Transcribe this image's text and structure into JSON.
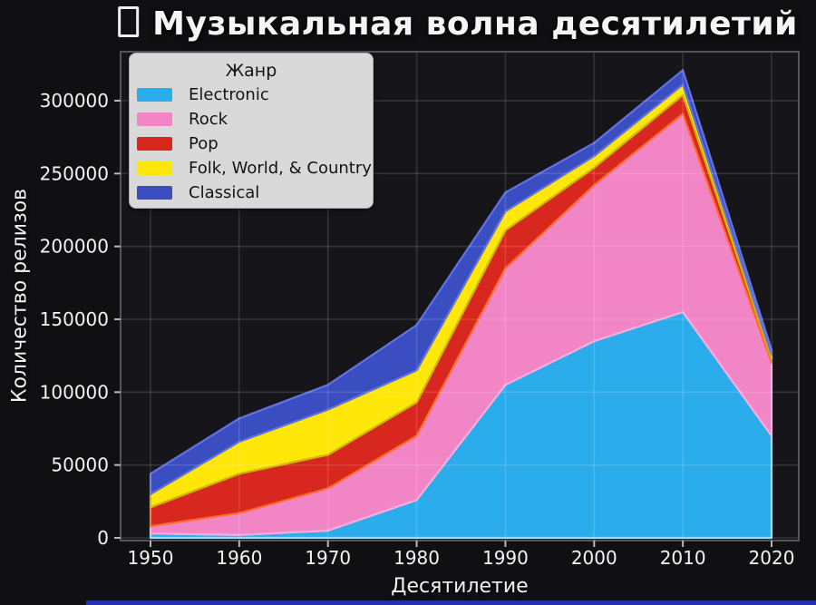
{
  "title": {
    "icon": "missing-glyph-box",
    "text": "Музыкальная волна десятилетий"
  },
  "colors": {
    "figure_bg": "#101013",
    "plot_bg": "#16161a",
    "grid": "rgba(255,255,255,0.13)",
    "spine": "#54545a",
    "tick": "#b8b8bc",
    "text": "#f3f3f3",
    "legend_bg": "#d9d9d9",
    "legend_text": "#141414",
    "accent_bar": "#2835c8"
  },
  "chart_data": {
    "type": "area",
    "stacked": true,
    "title": "Музыкальная волна десятилетий",
    "xlabel": "Десятилетие",
    "ylabel": "Количество релизов",
    "legend_title": "Жанр",
    "legend_position": "upper left",
    "grid": true,
    "x": [
      1950,
      1960,
      1970,
      1980,
      1990,
      2000,
      2010,
      2020
    ],
    "yticks": [
      0,
      50000,
      100000,
      150000,
      200000,
      250000,
      300000
    ],
    "ylim": [
      0,
      333000
    ],
    "series": [
      {
        "name": "Electronic",
        "color": "#2CADEB",
        "edge": "#8FD9FF",
        "values": [
          3000,
          2000,
          5000,
          26000,
          105000,
          135000,
          155000,
          70000
        ]
      },
      {
        "name": "Rock",
        "color": "#F285C5",
        "edge": "#FFAADC",
        "values": [
          5000,
          15000,
          29000,
          44000,
          80000,
          107000,
          136000,
          50000
        ]
      },
      {
        "name": "Pop",
        "color": "#D8271E",
        "edge": "#FF6B2D",
        "values": [
          13000,
          27000,
          23000,
          23000,
          26000,
          12000,
          13000,
          3000
        ]
      },
      {
        "name": "Folk, World, & Country",
        "color": "#FFE70A",
        "edge": "#CBB800",
        "values": [
          9000,
          22000,
          31000,
          22000,
          13000,
          8000,
          7000,
          3000
        ]
      },
      {
        "name": "Classical",
        "color": "#3A4EC2",
        "edge": "#6272E0",
        "values": [
          14000,
          16000,
          17000,
          31000,
          13000,
          9000,
          10000,
          3000
        ]
      }
    ],
    "totals": [
      44000,
      82000,
      105000,
      146000,
      237000,
      271000,
      321000,
      129000
    ]
  }
}
